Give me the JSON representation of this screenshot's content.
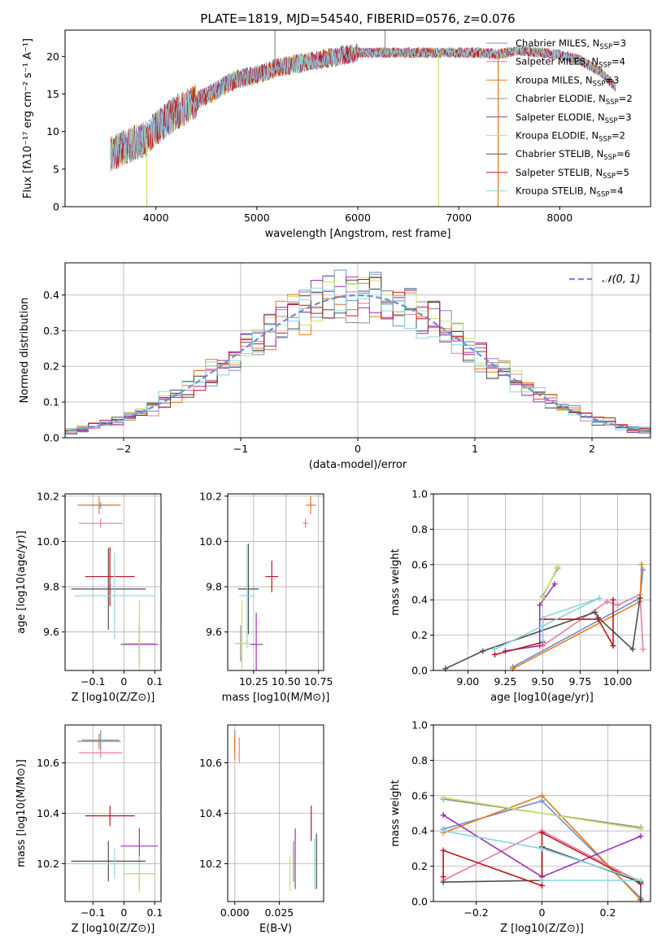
{
  "title": "PLATE=1819, MJD=54540, FIBERID=0576, z=0.076",
  "colors": {
    "Chabrier MILES": "#6a8fd8",
    "Salpeter MILES": "#e87ba4",
    "Kroupa MILES": "#e8791a",
    "Chabrier ELODIE": "#8e8e8e",
    "Salpeter ELODIE": "#9b31b4",
    "Kroupa ELODIE": "#c7e36a",
    "Chabrier STELIB": "#4f4f4f",
    "Salpeter STELIB": "#c0151c",
    "Kroupa STELIB": "#86d6de"
  },
  "spectrum_legend": [
    {
      "model": "Chabrier MILES",
      "n": "3"
    },
    {
      "model": "Salpeter MILES",
      "n": "4"
    },
    {
      "model": "Kroupa MILES",
      "n": "3"
    },
    {
      "model": "Chabrier ELODIE",
      "n": "2"
    },
    {
      "model": "Salpeter ELODIE",
      "n": "3"
    },
    {
      "model": "Kroupa ELODIE",
      "n": "2"
    },
    {
      "model": "Chabrier STELIB",
      "n": "6"
    },
    {
      "model": "Salpeter STELIB",
      "n": "5"
    },
    {
      "model": "Kroupa STELIB",
      "n": "4"
    }
  ],
  "legend_prefix_N": "N",
  "legend_sub_SSP": "SSP",
  "chart_data": [
    {
      "id": "spectrum",
      "type": "line",
      "xlabel": "wavelength [Angstrom, rest frame]",
      "ylabel": "Flux [fλ10⁻¹⁷ erg cm⁻² s⁻¹ A⁻¹]",
      "xlim": [
        3100,
        8900
      ],
      "ylim": [
        0,
        23.5
      ],
      "xticks": [
        4000,
        5000,
        6000,
        7000,
        8000
      ],
      "yticks": [
        0,
        5,
        10,
        15,
        20
      ],
      "continuum": [
        [
          3550,
          7
        ],
        [
          3700,
          8
        ],
        [
          3900,
          9
        ],
        [
          4000,
          10.5
        ],
        [
          4200,
          12.5
        ],
        [
          4400,
          14
        ],
        [
          4600,
          15.5
        ],
        [
          4800,
          17
        ],
        [
          5000,
          17.5
        ],
        [
          5200,
          18.5
        ],
        [
          5400,
          19
        ],
        [
          5600,
          19.5
        ],
        [
          5800,
          20
        ],
        [
          6000,
          20.5
        ],
        [
          6200,
          20.5
        ],
        [
          6500,
          20.5
        ],
        [
          6800,
          20.5
        ],
        [
          7000,
          20.5
        ],
        [
          7200,
          20.5
        ],
        [
          7400,
          20.3
        ],
        [
          7600,
          20.8
        ],
        [
          7800,
          20.5
        ],
        [
          8000,
          20.2
        ],
        [
          8200,
          19.5
        ],
        [
          8400,
          18
        ],
        [
          8550,
          16
        ]
      ],
      "spikes": [
        {
          "x": 3910,
          "y": 0
        },
        {
          "x": 5180,
          "y": 23.5
        },
        {
          "x": 6800,
          "y": 0
        },
        {
          "x": 7390,
          "y": 0
        },
        {
          "x": 6270,
          "y": 23.5
        }
      ]
    },
    {
      "id": "residuals",
      "type": "histogram",
      "xlabel": "(data-model)/error",
      "ylabel": "Normed distribution",
      "legend": "𝒩(0, 1)",
      "xlim": [
        -2.5,
        2.5
      ],
      "ylim": [
        0,
        0.49
      ],
      "xticks": [
        -2,
        -1,
        0,
        1,
        2
      ],
      "yticks": [
        0.0,
        0.1,
        0.2,
        0.3,
        0.4
      ],
      "bin_width": 0.1,
      "normal_mean": 0,
      "normal_sigma": 1
    },
    {
      "id": "age_vs_Z",
      "type": "errorbar",
      "xlabel": "Z [log10(Z/Z⊙)]",
      "ylabel": "age  [log10(age/yr)]",
      "xlim": [
        -0.19,
        0.12
      ],
      "ylim": [
        9.43,
        10.21
      ],
      "xticks": [
        -0.1,
        0.0,
        0.1
      ],
      "yticks": [
        9.6,
        9.8,
        10.0,
        10.2
      ],
      "points": [
        {
          "model": "Chabrier MILES",
          "x": -0.075,
          "xerr": 0.06,
          "y": 10.16,
          "yerr": 0.015
        },
        {
          "model": "Salpeter MILES",
          "x": -0.075,
          "xerr": 0.07,
          "y": 10.08,
          "yerr": 0.02
        },
        {
          "model": "Kroupa MILES",
          "x": -0.08,
          "xerr": 0.07,
          "y": 10.16,
          "yerr": 0.04
        },
        {
          "model": "Chabrier ELODIE",
          "x": 0.05,
          "xerr": 0.05,
          "y": 9.55,
          "yerr": 0.1
        },
        {
          "model": "Salpeter ELODIE",
          "x": 0.05,
          "xerr": 0.06,
          "y": 9.545,
          "yerr": 0.08
        },
        {
          "model": "Kroupa ELODIE",
          "x": 0.05,
          "xerr": 0.05,
          "y": 9.55,
          "yerr": 0.19
        },
        {
          "model": "Chabrier STELIB",
          "x": -0.05,
          "xerr": 0.12,
          "y": 9.79,
          "yerr": 0.18
        },
        {
          "model": "Salpeter STELIB",
          "x": -0.045,
          "xerr": 0.08,
          "y": 9.845,
          "yerr": 0.13
        },
        {
          "model": "Kroupa STELIB",
          "x": -0.03,
          "xerr": 0.13,
          "y": 9.76,
          "yerr": 0.19
        }
      ]
    },
    {
      "id": "age_vs_mass",
      "type": "errorbar",
      "xlabel": "mass [log10(M/M⊙)]",
      "ylabel": "",
      "xlim": [
        10.05,
        10.79
      ],
      "ylim": [
        9.43,
        10.21
      ],
      "xticks": [
        10.25,
        10.5,
        10.75
      ],
      "yticks": [
        9.6,
        9.8,
        10.0,
        10.2
      ],
      "points": [
        {
          "model": "Chabrier MILES",
          "x": 10.69,
          "xerr": 0.04,
          "y": 10.16,
          "yerr": 0.01
        },
        {
          "model": "Salpeter MILES",
          "x": 10.65,
          "xerr": 0.02,
          "y": 10.08,
          "yerr": 0.02
        },
        {
          "model": "Kroupa MILES",
          "x": 10.69,
          "xerr": 0.03,
          "y": 10.16,
          "yerr": 0.04
        },
        {
          "model": "Chabrier ELODIE",
          "x": 10.15,
          "xerr": 0.05,
          "y": 9.55,
          "yerr": 0.08
        },
        {
          "model": "Salpeter ELODIE",
          "x": 10.27,
          "xerr": 0.05,
          "y": 9.545,
          "yerr": 0.14
        },
        {
          "model": "Kroupa ELODIE",
          "x": 10.16,
          "xerr": 0.06,
          "y": 9.55,
          "yerr": 0.19
        },
        {
          "model": "Chabrier STELIB",
          "x": 10.21,
          "xerr": 0.08,
          "y": 9.79,
          "yerr": 0.2
        },
        {
          "model": "Salpeter STELIB",
          "x": 10.39,
          "xerr": 0.05,
          "y": 9.845,
          "yerr": 0.07
        },
        {
          "model": "Kroupa STELIB",
          "x": 10.2,
          "xerr": 0.06,
          "y": 9.76,
          "yerr": 0.23
        }
      ]
    },
    {
      "id": "weight_vs_age",
      "type": "line",
      "xlabel": "age  [log10(age/yr)]",
      "ylabel": "mass weight",
      "xlim": [
        8.77,
        10.22
      ],
      "ylim": [
        0,
        1
      ],
      "xticks": [
        9.0,
        9.25,
        9.5,
        9.75,
        10.0
      ],
      "yticks": [
        0.0,
        0.2,
        0.4,
        0.6,
        0.8,
        1.0
      ],
      "series": [
        {
          "model": "Chabrier MILES",
          "points": [
            [
              9.3,
              0.02
            ],
            [
              10.15,
              0.41
            ],
            [
              10.17,
              0.57
            ]
          ]
        },
        {
          "model": "Salpeter MILES",
          "points": [
            [
              9.5,
              0.14
            ],
            [
              9.93,
              0.39
            ],
            [
              10.0,
              0.37
            ],
            [
              10.15,
              0.43
            ],
            [
              10.17,
              0.12
            ]
          ]
        },
        {
          "model": "Kroupa MILES",
          "points": [
            [
              9.3,
              0.01
            ],
            [
              10.15,
              0.39
            ],
            [
              10.16,
              0.6
            ]
          ]
        },
        {
          "model": "Chabrier ELODIE",
          "points": [
            [
              9.5,
              0.42
            ],
            [
              9.6,
              0.58
            ]
          ]
        },
        {
          "model": "Salpeter ELODIE",
          "points": [
            [
              9.25,
              0.11
            ],
            [
              9.48,
              0.14
            ],
            [
              9.48,
              0.37
            ],
            [
              9.58,
              0.49
            ]
          ]
        },
        {
          "model": "Kroupa ELODIE",
          "points": [
            [
              9.5,
              0.41
            ],
            [
              9.6,
              0.59
            ]
          ]
        },
        {
          "model": "Chabrier STELIB",
          "points": [
            [
              8.85,
              0.01
            ],
            [
              9.1,
              0.11
            ],
            [
              9.85,
              0.33
            ],
            [
              9.87,
              0.3
            ],
            [
              10.1,
              0.12
            ],
            [
              10.15,
              0.41
            ]
          ]
        },
        {
          "model": "Salpeter STELIB",
          "points": [
            [
              9.18,
              0.09
            ],
            [
              9.5,
              0.16
            ],
            [
              9.5,
              0.29
            ],
            [
              9.87,
              0.29
            ],
            [
              9.97,
              0.14
            ],
            [
              9.97,
              0.4
            ]
          ]
        },
        {
          "model": "Kroupa STELIB",
          "points": [
            [
              9.18,
              0.12
            ],
            [
              9.88,
              0.41
            ],
            [
              9.5,
              0.3
            ],
            [
              9.5,
              0.17
            ]
          ]
        }
      ]
    },
    {
      "id": "mass_vs_Z",
      "type": "errorbar",
      "xlabel": "Z [log10(Z/Z⊙)]",
      "ylabel": "mass [log10(M/M⊙)]",
      "xlim": [
        -0.19,
        0.12
      ],
      "ylim": [
        10.05,
        10.75
      ],
      "xticks": [
        -0.1,
        0.0,
        0.1
      ],
      "yticks": [
        10.2,
        10.4,
        10.6
      ],
      "points": [
        {
          "model": "Chabrier MILES",
          "x": -0.075,
          "xerr": 0.06,
          "y": 10.69,
          "yerr": 0.04
        },
        {
          "model": "Salpeter MILES",
          "x": -0.075,
          "xerr": 0.07,
          "y": 10.64,
          "yerr": 0.02
        },
        {
          "model": "Kroupa MILES",
          "x": -0.08,
          "xerr": 0.07,
          "y": 10.685,
          "yerr": 0.03
        },
        {
          "model": "Chabrier ELODIE",
          "x": 0.05,
          "xerr": 0.05,
          "y": 10.16,
          "yerr": 0.06
        },
        {
          "model": "Salpeter ELODIE",
          "x": 0.05,
          "xerr": 0.06,
          "y": 10.27,
          "yerr": 0.07
        },
        {
          "model": "Kroupa ELODIE",
          "x": 0.05,
          "xerr": 0.05,
          "y": 10.16,
          "yerr": 0.07
        },
        {
          "model": "Chabrier STELIB",
          "x": -0.05,
          "xerr": 0.12,
          "y": 10.21,
          "yerr": 0.08
        },
        {
          "model": "Salpeter STELIB",
          "x": -0.045,
          "xerr": 0.08,
          "y": 10.39,
          "yerr": 0.04
        },
        {
          "model": "Kroupa STELIB",
          "x": -0.03,
          "xerr": 0.13,
          "y": 10.2,
          "yerr": 0.06
        }
      ]
    },
    {
      "id": "mass_vs_EBV",
      "type": "errorbar",
      "xlabel": "E(B-V)",
      "ylabel": "",
      "xlim": [
        -0.004,
        0.05
      ],
      "ylim": [
        10.05,
        10.75
      ],
      "xticks": [
        0.0,
        0.025
      ],
      "xticklabels": [
        "0.000",
        "0.025"
      ],
      "yticks": [
        10.2,
        10.4,
        10.6
      ],
      "points": [
        {
          "model": "Chabrier MILES",
          "x": 0.0,
          "xerr": 0,
          "y": 10.69,
          "yerr": 0.04
        },
        {
          "model": "Salpeter MILES",
          "x": 0.0025,
          "xerr": 0,
          "y": 10.65,
          "yerr": 0.05
        },
        {
          "model": "Kroupa MILES",
          "x": 0.0,
          "xerr": 0,
          "y": 10.66,
          "yerr": 0.05
        },
        {
          "model": "Chabrier ELODIE",
          "x": 0.033,
          "xerr": 0,
          "y": 10.21,
          "yerr": 0.08
        },
        {
          "model": "Salpeter ELODIE",
          "x": 0.034,
          "xerr": 0,
          "y": 10.22,
          "yerr": 0.12
        },
        {
          "model": "Kroupa ELODIE",
          "x": 0.031,
          "xerr": 0,
          "y": 10.16,
          "yerr": 0.07
        },
        {
          "model": "Chabrier STELIB",
          "x": 0.046,
          "xerr": 0,
          "y": 10.21,
          "yerr": 0.11
        },
        {
          "model": "Salpeter STELIB",
          "x": 0.043,
          "xerr": 0,
          "y": 10.36,
          "yerr": 0.07
        },
        {
          "model": "Kroupa STELIB",
          "x": 0.045,
          "xerr": 0,
          "y": 10.2,
          "yerr": 0.1
        }
      ]
    },
    {
      "id": "weight_vs_Z",
      "type": "line",
      "xlabel": "Z [log10(Z/Z⊙)]",
      "ylabel": "mass weight",
      "xlim": [
        -0.33,
        0.33
      ],
      "ylim": [
        0,
        1
      ],
      "xticks": [
        -0.2,
        0.0,
        0.2
      ],
      "yticks": [
        0.0,
        0.2,
        0.4,
        0.6,
        0.8,
        1.0
      ],
      "series": [
        {
          "model": "Chabrier MILES",
          "points": [
            [
              -0.3,
              0.41
            ],
            [
              0.0,
              0.57
            ],
            [
              0.3,
              0.02
            ]
          ]
        },
        {
          "model": "Salpeter MILES",
          "points": [
            [
              -0.3,
              0.12
            ],
            [
              0.0,
              0.4
            ],
            [
              0.3,
              0.11
            ]
          ]
        },
        {
          "model": "Kroupa MILES",
          "points": [
            [
              -0.3,
              0.39
            ],
            [
              0.0,
              0.6
            ],
            [
              0.3,
              0.01
            ]
          ]
        },
        {
          "model": "Chabrier ELODIE",
          "points": [
            [
              -0.3,
              0.58
            ],
            [
              0.3,
              0.42
            ]
          ]
        },
        {
          "model": "Salpeter ELODIE",
          "points": [
            [
              -0.3,
              0.49
            ],
            [
              0.0,
              0.14
            ],
            [
              0.3,
              0.37
            ]
          ]
        },
        {
          "model": "Kroupa ELODIE",
          "points": [
            [
              -0.3,
              0.59
            ],
            [
              0.3,
              0.41
            ]
          ]
        },
        {
          "model": "Chabrier STELIB",
          "points": [
            [
              -0.3,
              0.11
            ],
            [
              0.0,
              0.12
            ],
            [
              0.0,
              0.31
            ],
            [
              0.3,
              0.11
            ],
            [
              0.3,
              0.01
            ]
          ]
        },
        {
          "model": "Salpeter STELIB",
          "points": [
            [
              -0.3,
              0.14
            ],
            [
              -0.3,
              0.29
            ],
            [
              0.0,
              0.09
            ],
            [
              0.0,
              0.39
            ],
            [
              0.3,
              0.1
            ]
          ]
        },
        {
          "model": "Kroupa STELIB",
          "points": [
            [
              -0.3,
              0.4
            ],
            [
              0.0,
              0.3
            ],
            [
              0.3,
              0.12
            ],
            [
              0.0,
              0.12
            ]
          ]
        }
      ]
    }
  ]
}
